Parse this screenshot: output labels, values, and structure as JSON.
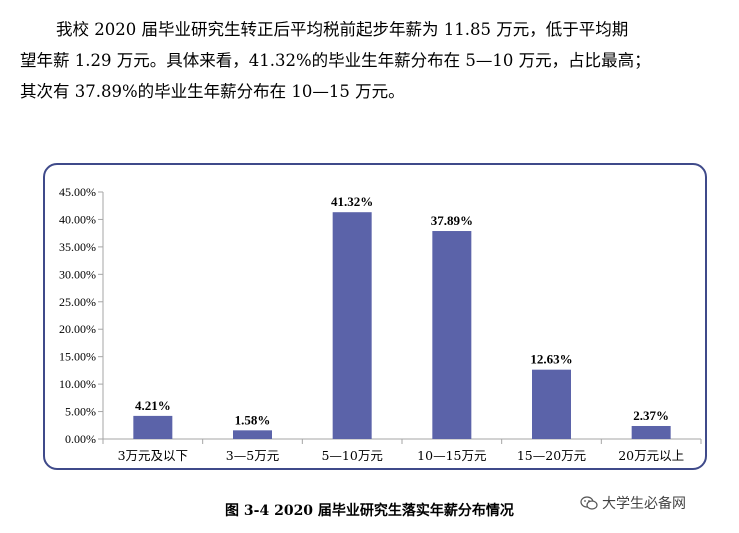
{
  "paragraph": {
    "line1": "我校 2020 届毕业研究生转正后平均税前起步年薪为 11.85 万元，低于平均期",
    "line2": "望年薪 1.29 万元。具体来看，41.32%的毕业生年薪分布在 5—10 万元，占比最高；",
    "line3": "其次有 37.89%的毕业生年薪分布在 10—15 万元。"
  },
  "caption": "图 3-4 2020 届毕业研究生落实年薪分布情况",
  "watermark": {
    "icon": "wechat-icon",
    "text": "大学生必备网"
  },
  "colors": {
    "bar": "#5b63a9",
    "axis": "#a6a6a6",
    "border": "#3f4a8a"
  },
  "chart_data": {
    "type": "bar",
    "categories": [
      "3万元及以下",
      "3—5万元",
      "5—10万元",
      "10—15万元",
      "15—20万元",
      "20万元以上"
    ],
    "values": [
      4.21,
      1.58,
      41.32,
      37.89,
      12.63,
      2.37
    ],
    "data_labels": [
      "4.21%",
      "1.58%",
      "41.32%",
      "37.89%",
      "12.63%",
      "2.37%"
    ],
    "yticks": [
      "0.00%",
      "5.00%",
      "10.00%",
      "15.00%",
      "20.00%",
      "25.00%",
      "30.00%",
      "35.00%",
      "40.00%",
      "45.00%"
    ],
    "ylim": [
      0,
      45
    ],
    "title": "",
    "xlabel": "",
    "ylabel": "",
    "grid": false
  }
}
